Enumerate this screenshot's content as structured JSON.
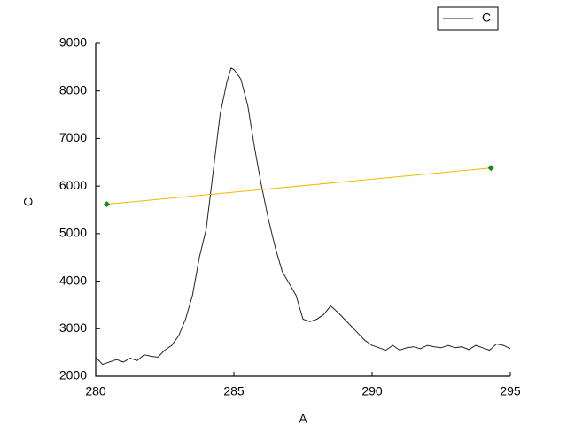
{
  "chart_data": {
    "type": "line",
    "x_label": "A",
    "y_label": "C",
    "xlim": [
      280,
      295
    ],
    "xticks": [
      280,
      285,
      290,
      295
    ],
    "ylim": [
      2000,
      9000
    ],
    "yticks": [
      2000,
      3000,
      4000,
      5000,
      6000,
      7000,
      8000,
      9000
    ],
    "legend": "top-right",
    "series": [
      {
        "name": "C",
        "color": "#222222",
        "x": [
          280.0,
          280.25,
          280.5,
          280.75,
          281.0,
          281.25,
          281.5,
          281.75,
          282.0,
          282.25,
          282.5,
          282.75,
          283.0,
          283.25,
          283.5,
          283.75,
          284.0,
          284.25,
          284.5,
          284.75,
          284.9,
          285.0,
          285.25,
          285.5,
          285.75,
          286.0,
          286.25,
          286.5,
          286.75,
          287.0,
          287.25,
          287.5,
          287.75,
          288.0,
          288.25,
          288.5,
          288.75,
          289.0,
          289.25,
          289.5,
          289.75,
          290.0,
          290.25,
          290.5,
          290.75,
          291.0,
          291.25,
          291.5,
          291.75,
          292.0,
          292.25,
          292.5,
          292.75,
          293.0,
          293.25,
          293.5,
          293.75,
          294.0,
          294.25,
          294.5,
          294.75,
          295.0
        ],
        "values": [
          2400,
          2250,
          2300,
          2350,
          2300,
          2380,
          2330,
          2450,
          2420,
          2400,
          2550,
          2650,
          2850,
          3200,
          3700,
          4500,
          5100,
          6300,
          7500,
          8200,
          8480,
          8450,
          8250,
          7700,
          6800,
          6000,
          5300,
          4700,
          4200,
          3950,
          3700,
          3200,
          3150,
          3200,
          3300,
          3480,
          3350,
          3200,
          3050,
          2900,
          2750,
          2650,
          2600,
          2550,
          2650,
          2550,
          2600,
          2620,
          2580,
          2650,
          2620,
          2600,
          2650,
          2600,
          2620,
          2560,
          2650,
          2600,
          2550,
          2680,
          2650,
          2580
        ]
      },
      {
        "color": "#f5b800",
        "marker_color": "#1a8a1a",
        "markers": true,
        "x": [
          280.4,
          294.3
        ],
        "values": [
          5620,
          6380
        ]
      }
    ]
  }
}
